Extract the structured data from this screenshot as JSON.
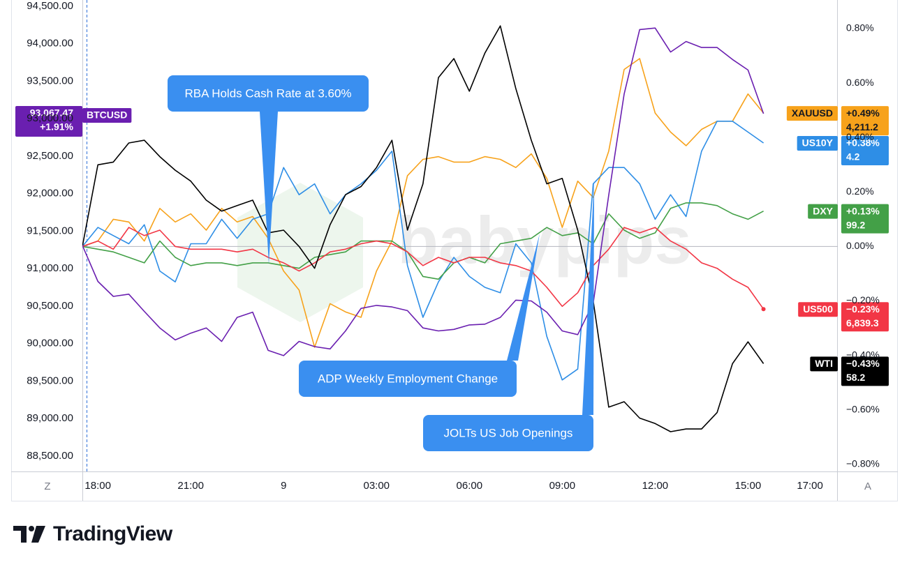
{
  "chart_data": {
    "type": "line",
    "x": [
      17.5,
      18,
      18.5,
      19,
      19.5,
      20,
      20.5,
      21,
      21.5,
      22,
      22.5,
      23,
      23.5,
      24,
      24.5,
      25,
      25.5,
      26,
      26.5,
      27,
      27.5,
      28,
      28.5,
      29,
      29.5,
      30,
      30.5,
      31,
      31.5,
      32,
      32.5,
      33,
      33.5,
      34,
      34.5,
      35,
      35.5,
      36,
      36.5,
      37,
      37.5,
      38,
      38.5,
      39,
      39.5
    ],
    "xlim": [
      17.5,
      41.9
    ],
    "xticks": [
      {
        "value": 18,
        "label": "18:00"
      },
      {
        "value": 21,
        "label": "21:00"
      },
      {
        "value": 24,
        "label": "9"
      },
      {
        "value": 27,
        "label": "03:00"
      },
      {
        "value": 30,
        "label": "06:00"
      },
      {
        "value": 33,
        "label": "09:00"
      },
      {
        "value": 36,
        "label": "12:00"
      },
      {
        "value": 39,
        "label": "15:00"
      },
      {
        "value": 41,
        "label": "17:00"
      }
    ],
    "ylim": [
      88295,
      94584
    ],
    "yticks": [
      {
        "value": 94500,
        "label": "94,500.00"
      },
      {
        "value": 94000,
        "label": "94,000.00"
      },
      {
        "value": 93500,
        "label": "93,500.00"
      },
      {
        "value": 93000,
        "label": "93,000.00"
      },
      {
        "value": 92500,
        "label": "92,500.00"
      },
      {
        "value": 92000,
        "label": "92,000.00"
      },
      {
        "value": 91500,
        "label": "91,500.00"
      },
      {
        "value": 91000,
        "label": "91,000.00"
      },
      {
        "value": 90500,
        "label": "90,500.00"
      },
      {
        "value": 90000,
        "label": "90,000.00"
      },
      {
        "value": 89500,
        "label": "89,500.00"
      },
      {
        "value": 89000,
        "label": "89,000.00"
      },
      {
        "value": 88500,
        "label": "88,500.00"
      }
    ],
    "y2lim": [
      -0.826,
      0.905
    ],
    "y2ticks": [
      {
        "value": 0.8,
        "label": "0.80%"
      },
      {
        "value": 0.6,
        "label": "0.60%"
      },
      {
        "value": 0.4,
        "label": "0.40%"
      },
      {
        "value": 0.2,
        "label": "0.20%"
      },
      {
        "value": 0,
        "label": "0.00%"
      },
      {
        "value": -0.2,
        "label": "−0.20%"
      },
      {
        "value": -0.4,
        "label": "−0.40%"
      },
      {
        "value": -0.6,
        "label": "−0.60%"
      },
      {
        "value": -0.8,
        "label": "−0.80%"
      }
    ],
    "grid": false,
    "series": [
      {
        "name": "BTCUSD",
        "color": "#6a1fb0",
        "tag_text": "#ffffff",
        "axis": "y",
        "change_label": "+1.91%",
        "price_label": "93,067.47",
        "values": [
          91310,
          90830,
          90630,
          90660,
          90430,
          90210,
          90050,
          90140,
          90210,
          90030,
          90350,
          90420,
          89910,
          89840,
          90030,
          89960,
          89930,
          90170,
          90470,
          90510,
          90490,
          90440,
          90210,
          90170,
          90190,
          90250,
          90260,
          90350,
          90580,
          90570,
          90420,
          90170,
          90120,
          90540,
          91980,
          93330,
          94190,
          94210,
          93890,
          94030,
          93950,
          93950,
          93790,
          93650,
          93067.47
        ]
      },
      {
        "name": "XAUUSD",
        "color": "#f7a21b",
        "tag_text": "#131722",
        "axis": "y2",
        "change_label": "+0.49%",
        "price_label": "4,211.2",
        "values": [
          0,
          0.02,
          0.1,
          0.09,
          0.02,
          0.14,
          0.09,
          0.12,
          0.06,
          0.14,
          0.09,
          0.11,
          0.03,
          -0.09,
          -0.16,
          -0.37,
          -0.21,
          -0.24,
          -0.26,
          -0.09,
          0.02,
          0.26,
          0.32,
          0.33,
          0.31,
          0.31,
          0.33,
          0.32,
          0.29,
          0.34,
          0.25,
          0.07,
          0.24,
          0.18,
          0.35,
          0.65,
          0.69,
          0.49,
          0.42,
          0.37,
          0.43,
          0.46,
          0.46,
          0.56,
          0.49
        ]
      },
      {
        "name": "US10Y",
        "color": "#2e8ee6",
        "tag_text": "#ffffff",
        "axis": "y2",
        "change_label": "+0.38%",
        "price_label": "4.2",
        "values": [
          0,
          0.07,
          0.04,
          0.01,
          0.08,
          -0.09,
          -0.13,
          0.01,
          0.01,
          0.1,
          0.03,
          0.1,
          0.12,
          0.29,
          0.19,
          0.23,
          0.12,
          0.19,
          0.23,
          0.28,
          0.35,
          -0.07,
          -0.26,
          -0.13,
          -0.04,
          -0.11,
          -0.15,
          -0.17,
          0.01,
          -0.06,
          -0.33,
          -0.49,
          -0.45,
          0.23,
          0.29,
          0.29,
          0.23,
          0.1,
          0.19,
          0.11,
          0.35,
          0.46,
          0.46,
          0.42,
          0.38
        ]
      },
      {
        "name": "DXY",
        "color": "#43a047",
        "tag_text": "#ffffff",
        "axis": "y2",
        "change_label": "+0.13%",
        "price_label": "99.2",
        "values": [
          0,
          -0.01,
          -0.02,
          -0.04,
          -0.06,
          0.02,
          -0.04,
          -0.07,
          -0.06,
          -0.06,
          -0.07,
          -0.06,
          -0.06,
          -0.07,
          -0.08,
          -0.04,
          -0.03,
          -0.02,
          0.02,
          0.02,
          0.02,
          -0.02,
          -0.11,
          -0.12,
          -0.06,
          -0.04,
          -0.06,
          0.01,
          0.02,
          0.03,
          0.07,
          0.04,
          0.05,
          0.01,
          0.12,
          0.06,
          0.03,
          0.05,
          0.14,
          0.16,
          0.16,
          0.15,
          0.12,
          0.1,
          0.13
        ]
      },
      {
        "name": "US500",
        "color": "#f23645",
        "tag_text": "#ffffff",
        "axis": "y2",
        "change_label": "−0.23%",
        "price_label": "6,839.3",
        "end_marker": true,
        "values": [
          0,
          0.02,
          -0.01,
          0.07,
          0.04,
          0.06,
          0,
          -0.01,
          -0.01,
          -0.01,
          -0.02,
          -0.01,
          -0.04,
          -0.06,
          -0.09,
          -0.06,
          -0.02,
          -0.01,
          0.01,
          0.02,
          0.01,
          -0.02,
          -0.07,
          -0.04,
          -0.06,
          -0.04,
          -0.04,
          -0.06,
          -0.07,
          -0.09,
          -0.15,
          -0.22,
          -0.17,
          -0.07,
          -0.01,
          0.07,
          0.05,
          0.07,
          0.02,
          -0.01,
          -0.06,
          -0.08,
          -0.12,
          -0.15,
          -0.23
        ]
      },
      {
        "name": "WTI",
        "color": "#000000",
        "tag_text": "#ffffff",
        "axis": "y2",
        "change_label": "−0.43%",
        "price_label": "58.2",
        "values": [
          0,
          0.3,
          0.31,
          0.38,
          0.39,
          0.33,
          0.28,
          0.24,
          0.17,
          0.13,
          0.15,
          0.17,
          0.05,
          0.06,
          0,
          -0.08,
          0.08,
          0.19,
          0.22,
          0.29,
          0.39,
          0.06,
          0.23,
          0.62,
          0.69,
          0.57,
          0.71,
          0.81,
          0.58,
          0.39,
          0.23,
          0.25,
          0.06,
          -0.2,
          -0.59,
          -0.57,
          -0.63,
          -0.65,
          -0.68,
          -0.67,
          -0.67,
          -0.61,
          -0.43,
          -0.35,
          -0.43
        ]
      }
    ],
    "annotations": [
      {
        "text": "RBA Holds Cash Rate at 3.60%"
      },
      {
        "text": "ADP Weekly Employment Change"
      },
      {
        "text": "JOLTs US Job Openings"
      }
    ],
    "watermark": "babypips"
  },
  "toolbar": {
    "left": "Z",
    "right": "A"
  },
  "brand": "TradingView"
}
